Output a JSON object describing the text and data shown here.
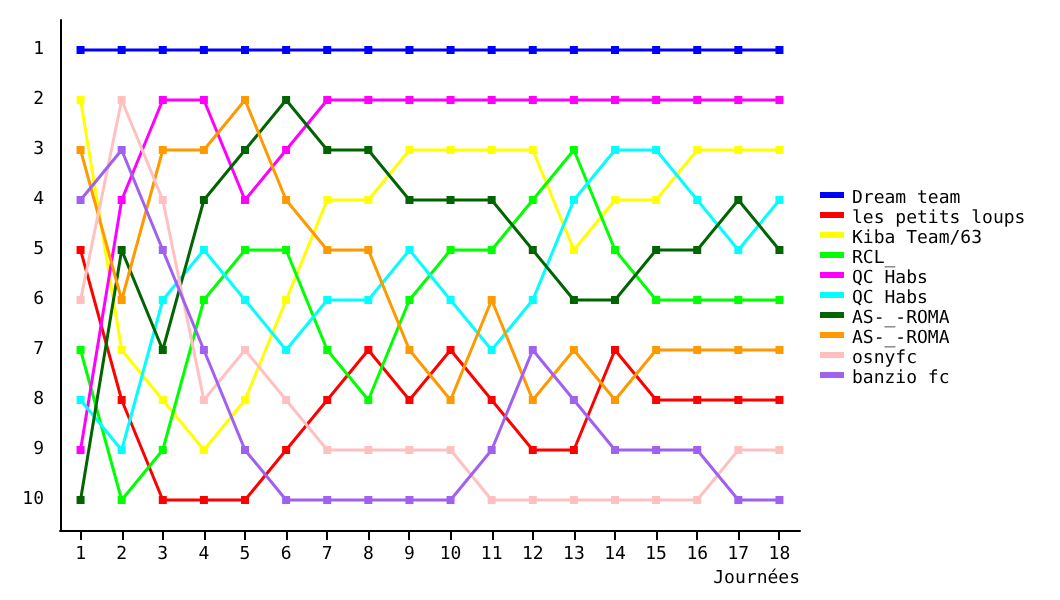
{
  "chart_data": {
    "type": "line",
    "xlabel": "Journées",
    "x": [
      1,
      2,
      3,
      4,
      5,
      6,
      7,
      8,
      9,
      10,
      11,
      12,
      13,
      14,
      15,
      16,
      17,
      18
    ],
    "xlim": [
      0.5,
      18.5
    ],
    "xticks": [
      1,
      2,
      3,
      4,
      5,
      6,
      7,
      8,
      9,
      10,
      11,
      12,
      13,
      14,
      15,
      16,
      17,
      18
    ],
    "ylim": [
      10.6,
      0.4
    ],
    "yticks": [
      1,
      2,
      3,
      4,
      5,
      6,
      7,
      8,
      9,
      10
    ],
    "grid": false,
    "legend": "right",
    "marker": "square",
    "line_style": "solid",
    "series": [
      {
        "name": "Dream team",
        "color": "#0000ff",
        "values": [
          1,
          1,
          1,
          1,
          1,
          1,
          1,
          1,
          1,
          1,
          1,
          1,
          1,
          1,
          1,
          1,
          1,
          1
        ]
      },
      {
        "name": "les petits loups",
        "color": "#ff0000",
        "values": [
          5,
          8,
          10,
          10,
          10,
          9,
          8,
          7,
          8,
          7,
          8,
          9,
          9,
          7,
          8,
          8,
          8,
          8
        ]
      },
      {
        "name": "Kiba Team/63",
        "color": "#ffff00",
        "values": [
          2,
          7,
          8,
          9,
          8,
          6,
          4,
          4,
          3,
          3,
          3,
          3,
          5,
          4,
          4,
          3,
          3,
          3
        ]
      },
      {
        "name": "RCL_",
        "color": "#00ff00",
        "values": [
          7,
          10,
          9,
          6,
          5,
          5,
          7,
          8,
          6,
          5,
          5,
          4,
          3,
          5,
          6,
          6,
          6,
          6
        ]
      },
      {
        "name": "QC Habs",
        "color": "#ff00ff",
        "values": [
          9,
          4,
          2,
          2,
          4,
          3,
          2,
          2,
          2,
          2,
          2,
          2,
          2,
          2,
          2,
          2,
          2,
          2
        ]
      },
      {
        "name": "QC Habs",
        "color": "#00ffff",
        "values": [
          8,
          9,
          6,
          5,
          6,
          7,
          6,
          6,
          5,
          6,
          7,
          6,
          4,
          3,
          3,
          4,
          5,
          4
        ]
      },
      {
        "name": "AS-_-ROMA",
        "color": "#006400",
        "values": [
          10,
          5,
          7,
          4,
          3,
          2,
          3,
          3,
          4,
          4,
          4,
          5,
          6,
          6,
          5,
          5,
          4,
          5
        ]
      },
      {
        "name": "AS-_-ROMA",
        "color": "#ff9900",
        "values": [
          3,
          6,
          3,
          3,
          2,
          4,
          5,
          5,
          7,
          8,
          6,
          8,
          7,
          8,
          7,
          7,
          7,
          7
        ]
      },
      {
        "name": "osnyfc",
        "color": "#ffc0c0",
        "values": [
          6,
          2,
          4,
          8,
          7,
          8,
          9,
          9,
          9,
          9,
          10,
          10,
          10,
          10,
          10,
          10,
          9,
          9
        ]
      },
      {
        "name": "banzio fc",
        "color": "#a060f0",
        "values": [
          4,
          3,
          5,
          7,
          9,
          10,
          10,
          10,
          10,
          10,
          9,
          7,
          8,
          9,
          9,
          9,
          10,
          10
        ]
      }
    ]
  }
}
